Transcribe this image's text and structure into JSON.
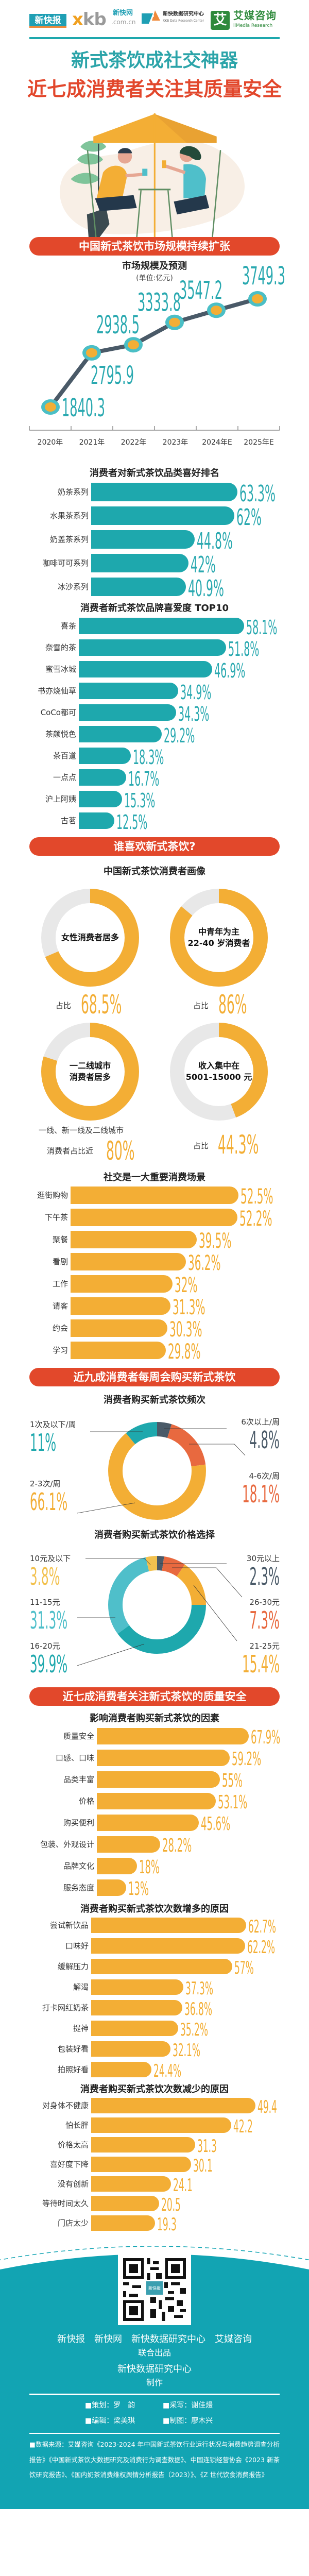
{
  "header": {
    "logo_xkb_paper": "新快报",
    "logo_xkb_mark": "xkb",
    "logo_xkb_net": "新快网",
    "logo_xkb_domain": ".com.cn",
    "logo_data_center": "新快数据研究中心",
    "logo_data_center_en": "XKB Data Research Center",
    "logo_iimedia_mark": "艾",
    "logo_iimedia": "艾媒咨询",
    "logo_iimedia_en": "iiMedia Research"
  },
  "title": {
    "line1": "新式茶饮成社交神器",
    "line2": "近七成消费者关注其质量安全"
  },
  "colors": {
    "teal": "#1ea8ad",
    "orange": "#f3ae35",
    "red": "#e2482b",
    "slate": "#4a5a68",
    "footer": "#12a4b3"
  },
  "sections": {
    "market": "中国新式茶饮市场规模持续扩张",
    "who": "谁喜欢新式茶饮?",
    "weekly": "近九成消费者每周会购买新式茶饮",
    "quality": "近七成消费者关注新式茶饮的质量安全"
  },
  "portrait": {
    "title": "中国新式茶饮消费者画像",
    "items": [
      {
        "line1": "女性消费者居多",
        "line2": "",
        "caption_pre": "",
        "caption": "占比",
        "value": 68.5,
        "value_label": "68.5%"
      },
      {
        "line1": "中青年为主",
        "line2": "22-40 岁消费者",
        "caption_pre": "",
        "caption": "占比",
        "value": 86,
        "value_label": "86%"
      },
      {
        "line1": "一二线城市",
        "line2": "消费者居多",
        "caption_pre": "一线、新一线及二线城市",
        "caption": "消费者占比近",
        "value": 80,
        "value_label": "80%"
      },
      {
        "line1": "收入集中在",
        "line2": "5001-15000 元",
        "caption_pre": "",
        "caption": "占比",
        "value": 44.3,
        "value_label": "44.3%"
      }
    ]
  },
  "chart_data": [
    {
      "type": "line",
      "title": "市场规模及预测",
      "subtitle": "(单位:亿元)",
      "categories": [
        "2020年",
        "2021年",
        "2022年",
        "2023年",
        "2024年E",
        "2025年E"
      ],
      "values": [
        1840.3,
        2795.9,
        2938.5,
        3333.8,
        3547.2,
        3749.3
      ],
      "xlabel": "",
      "ylabel": "",
      "grid": false
    },
    {
      "type": "bar",
      "title": "消费者对新式茶饮品类喜好排名",
      "categories": [
        "奶茶系列",
        "水果茶系列",
        "奶盖茶系列",
        "咖啡可可系列",
        "冰沙系列"
      ],
      "values": [
        63.3,
        62,
        44.8,
        42,
        40.9
      ],
      "suffix": "%"
    },
    {
      "type": "bar",
      "title": "消费者新式茶饮品牌喜爱度 TOP10",
      "categories": [
        "喜茶",
        "奈雪的茶",
        "蜜雪冰城",
        "书亦烧仙草",
        "CoCo都可",
        "茶颜悦色",
        "茶百道",
        "一点点",
        "沪上阿姨",
        "古茗"
      ],
      "values": [
        58.1,
        51.8,
        46.9,
        34.9,
        34.3,
        29.2,
        18.3,
        16.7,
        15.3,
        12.5
      ],
      "suffix": "%"
    },
    {
      "type": "bar",
      "title": "社交是一大重要消费场景",
      "categories": [
        "逛街购物",
        "下午茶",
        "聚餐",
        "看剧",
        "工作",
        "请客",
        "约会",
        "学习"
      ],
      "values": [
        52.5,
        52.2,
        39.5,
        36.2,
        32,
        31.3,
        30.3,
        29.8
      ],
      "suffix": "%"
    },
    {
      "type": "pie",
      "title": "消费者购买新式茶饮频次",
      "segments": [
        {
          "label": "6次以上/周",
          "value": 4.8,
          "color": "#4a5a68"
        },
        {
          "label": "4-6次/周",
          "value": 18.1,
          "color": "#e8693f"
        },
        {
          "label": "2-3次/周",
          "value": 66.1,
          "color": "#f3ae35"
        },
        {
          "label": "1次及以下/周",
          "value": 11,
          "color": "#1ea8ad"
        }
      ],
      "suffix": "%"
    },
    {
      "type": "pie",
      "title": "消费者购买新式茶饮价格选择",
      "segments": [
        {
          "label": "30元以上",
          "value": 2.3,
          "color": "#4a5a68"
        },
        {
          "label": "26-30元",
          "value": 7.3,
          "color": "#e8693f"
        },
        {
          "label": "21-25元",
          "value": 15.4,
          "color": "#f3ae35"
        },
        {
          "label": "16-20元",
          "value": 39.9,
          "color": "#1ea8ad"
        },
        {
          "label": "11-15元",
          "value": 31.3,
          "color": "#4fbfca"
        },
        {
          "label": "10元及以下",
          "value": 3.8,
          "color": "#f2c14e"
        }
      ],
      "suffix": "%"
    },
    {
      "type": "bar",
      "title": "影响消费者购买新式茶饮的因素",
      "categories": [
        "质量安全",
        "口感、口味",
        "品类丰富",
        "价格",
        "购买便利",
        "包装、外观设计",
        "品牌文化",
        "服务态度"
      ],
      "values": [
        67.9,
        59.2,
        55,
        53.1,
        45.6,
        28.2,
        18,
        13
      ],
      "suffix": "%"
    },
    {
      "type": "bar",
      "title": "消费者购买新式茶饮次数增多的原因",
      "categories": [
        "尝试新饮品",
        "口味好",
        "缓解压力",
        "解渴",
        "打卡网红奶茶",
        "提神",
        "包装好看",
        "拍照好看"
      ],
      "values": [
        62.7,
        62.2,
        57,
        37.3,
        36.8,
        35.2,
        32.1,
        24.4
      ],
      "suffix": "%"
    },
    {
      "type": "bar",
      "title": "消费者购买新式茶饮次数减少的原因",
      "categories": [
        "对身体不健康",
        "怕长胖",
        "价格太高",
        "喜好度下降",
        "没有创新",
        "等待时间太久",
        "门店太少"
      ],
      "values": [
        49.4,
        42.2,
        31.3,
        30.1,
        24.1,
        20.5,
        19.3
      ],
      "suffix": ""
    }
  ],
  "footer": {
    "qr_badge": "新快报",
    "producers": "新快报　新快网　新快数据研究中心　艾媒咨询",
    "producers_note": "联合出品",
    "maker": "新快数据研究中心",
    "maker_note": "制作",
    "staff": [
      "■策划：罗　韵",
      "■采写：谢佳熳",
      "■编辑：梁美琪",
      "■制图：廖木兴"
    ],
    "sources": "■数据来源：艾媒咨询《2023-2024 年中国新式茶饮行业运行状况与消费趋势调查分析报告》《中国新式茶饮大数据研究及消费行为调查数据》、中国连锁经营协会《2023 新茶饮研究报告》、《国内奶茶消费维权舆情分析报告（2023）》、《Z 世代饮食消费报告》"
  }
}
